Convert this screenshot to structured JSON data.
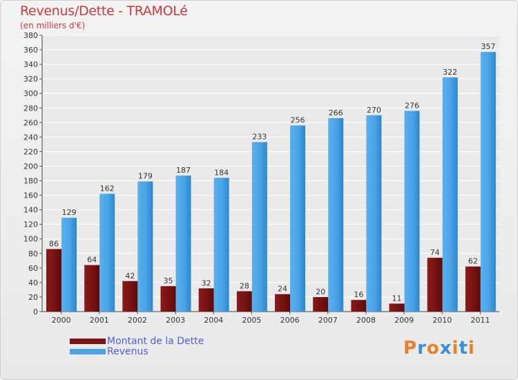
{
  "header": {
    "title": "Revenus/Dette - TRAMOLé",
    "subtitle": "(en milliers d'€)"
  },
  "chart_data": {
    "type": "bar",
    "categories": [
      "2000",
      "2001",
      "2002",
      "2003",
      "2004",
      "2005",
      "2006",
      "2007",
      "2008",
      "2009",
      "2010",
      "2011"
    ],
    "series": [
      {
        "name": "Montant de la Dette",
        "values": [
          86,
          64,
          42,
          35,
          32,
          28,
          24,
          20,
          16,
          11,
          74,
          62
        ],
        "color": "#7a1414"
      },
      {
        "name": "Revenus",
        "values": [
          129,
          162,
          179,
          187,
          184,
          233,
          256,
          266,
          270,
          276,
          322,
          357
        ],
        "color": "#4aa3e6"
      }
    ],
    "ylim": [
      0,
      380
    ],
    "ytick_step": 20,
    "grid": true,
    "legend_position": "bottom-left"
  },
  "legend": {
    "items": [
      {
        "label": "Montant de la Dette",
        "color": "#7a1414"
      },
      {
        "label": "Revenus",
        "color": "#4aa3e6"
      }
    ]
  },
  "brand": {
    "logo_text": "Proxiti",
    "letter_colors": [
      "#e8812a",
      "#3b8fd6",
      "#e8812a",
      "#3b8fd6",
      "#e8812a",
      "#3b8fd6",
      "#e8812a"
    ]
  }
}
